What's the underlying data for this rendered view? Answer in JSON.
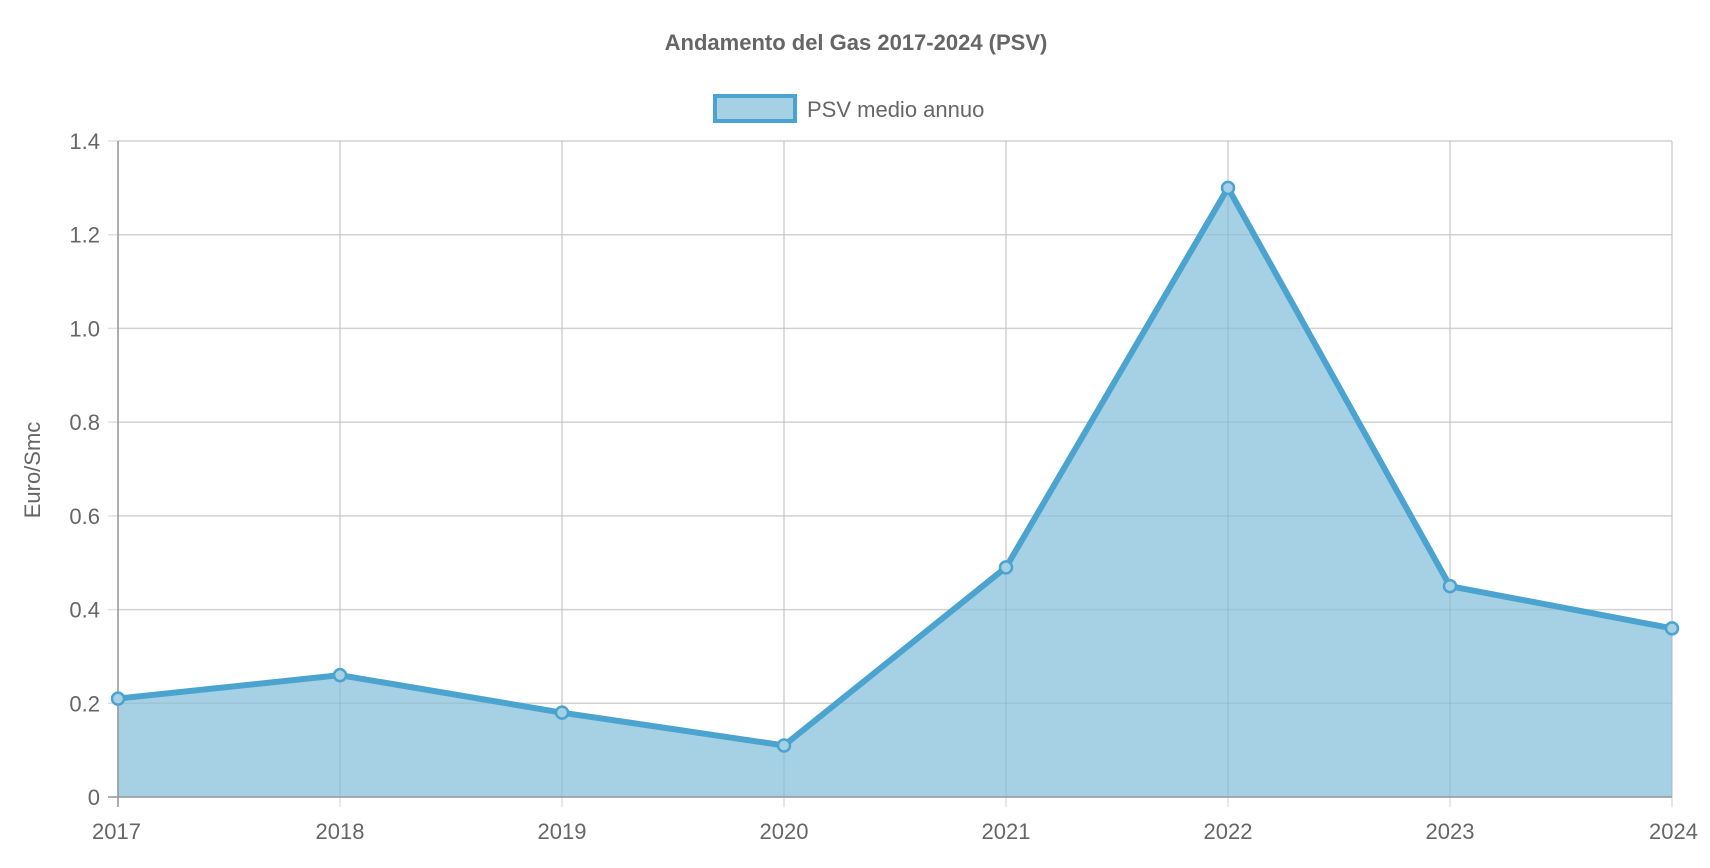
{
  "chart_data": {
    "type": "area",
    "title": "Andamento del Gas 2017-2024 (PSV)",
    "xlabel": "",
    "ylabel": "Euro/Smc",
    "categories": [
      "2017",
      "2018",
      "2019",
      "2020",
      "2021",
      "2022",
      "2023",
      "2024"
    ],
    "series": [
      {
        "name": "PSV medio annuo",
        "values": [
          0.21,
          0.26,
          0.18,
          0.11,
          0.49,
          1.3,
          0.45,
          0.36
        ]
      }
    ],
    "ylim": [
      0,
      1.4
    ],
    "yticks": [
      0,
      0.2,
      0.4,
      0.6,
      0.8,
      1.0,
      1.2,
      1.4
    ],
    "ytick_labels": [
      "0",
      "0.2",
      "0.4",
      "0.6",
      "0.8",
      "1.0",
      "1.2",
      "1.4"
    ],
    "grid": true,
    "legend_position": "top-center",
    "colors": {
      "line": "#4ba3cf",
      "fill": "#a6d0e4",
      "grid": "#e0e0e0",
      "axis": "#666666",
      "text": "#666666"
    }
  }
}
